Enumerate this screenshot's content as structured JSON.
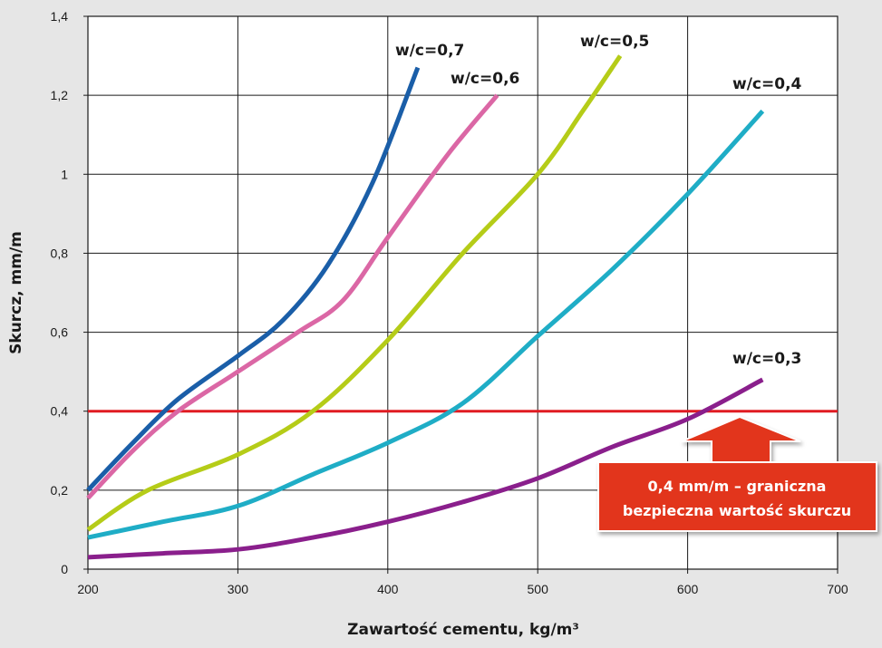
{
  "chart_data": {
    "type": "line",
    "title": "",
    "xlabel": "Zawartość cementu, kg/m³",
    "ylabel": "Skurcz, mm/m",
    "xlim": [
      200,
      700
    ],
    "ylim": [
      0,
      1.4
    ],
    "x_ticks": [
      200,
      300,
      400,
      500,
      600,
      700
    ],
    "x_tick_labels": [
      "200",
      "300",
      "400",
      "500",
      "600",
      "700"
    ],
    "y_ticks": [
      0,
      0.2,
      0.4,
      0.6,
      0.8,
      1.0,
      1.2,
      1.4
    ],
    "y_tick_labels": [
      "0",
      "0,2",
      "0,4",
      "0,6",
      "0,8",
      "1",
      "1,2",
      "1,4"
    ],
    "grid": true,
    "series": [
      {
        "name": "w/c=0,7",
        "color": "#1a5ea8",
        "x": [
          200,
          230,
          260,
          300,
          330,
          360,
          390,
          420
        ],
        "y": [
          0.2,
          0.32,
          0.43,
          0.54,
          0.63,
          0.77,
          0.98,
          1.27
        ]
      },
      {
        "name": "w/c=0,6",
        "color": "#db67a5",
        "x": [
          200,
          230,
          260,
          300,
          340,
          370,
          400,
          440,
          473
        ],
        "y": [
          0.18,
          0.3,
          0.4,
          0.5,
          0.6,
          0.68,
          0.84,
          1.05,
          1.2
        ]
      },
      {
        "name": "w/c=0,5",
        "color": "#b5cc18",
        "x": [
          200,
          240,
          300,
          350,
          400,
          450,
          500,
          530,
          555
        ],
        "y": [
          0.1,
          0.2,
          0.29,
          0.4,
          0.58,
          0.8,
          1.0,
          1.16,
          1.3
        ]
      },
      {
        "name": "w/c=0,4",
        "color": "#1fadc6",
        "x": [
          200,
          250,
          300,
          350,
          400,
          450,
          500,
          550,
          600,
          650
        ],
        "y": [
          0.08,
          0.12,
          0.16,
          0.24,
          0.32,
          0.42,
          0.59,
          0.76,
          0.95,
          1.16
        ]
      },
      {
        "name": "w/c=0,3",
        "color": "#8a1f8c",
        "x": [
          200,
          250,
          300,
          350,
          400,
          450,
          500,
          550,
          600,
          650
        ],
        "y": [
          0.03,
          0.04,
          0.05,
          0.08,
          0.12,
          0.17,
          0.23,
          0.31,
          0.38,
          0.48
        ]
      }
    ],
    "reference_line": {
      "y": 0.4,
      "color": "#e01b22"
    },
    "callout": {
      "lines": [
        "0,4 mm/m – graniczna",
        "bezpieczna wartość skurczu"
      ],
      "fill": "#e2361e"
    }
  }
}
